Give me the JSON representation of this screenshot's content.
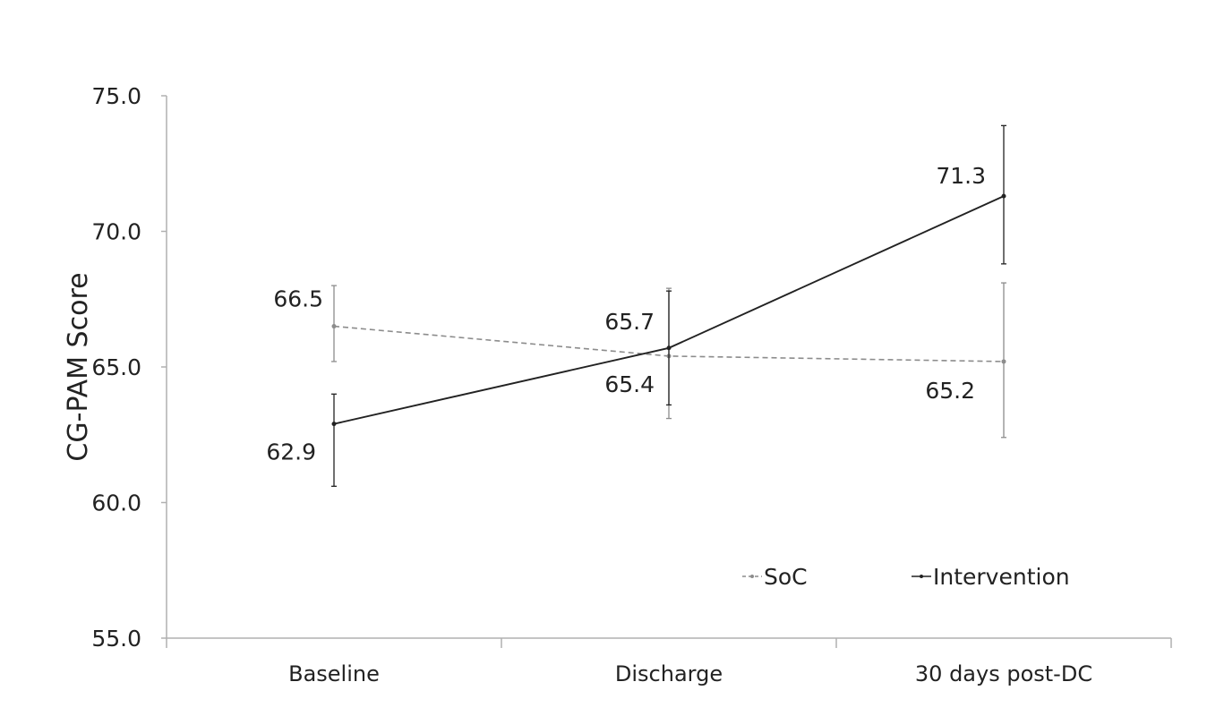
{
  "chart_data": {
    "type": "line",
    "title": "",
    "xlabel": "",
    "ylabel": "CG-PAM Score",
    "ylim": [
      55.0,
      75.0
    ],
    "yticks": [
      "55.0",
      "60.0",
      "65.0",
      "70.0",
      "75.0"
    ],
    "categories": [
      "Baseline",
      "Discharge",
      "30 days post-DC"
    ],
    "grid": false,
    "legend_position": "bottom-right",
    "series": [
      {
        "name": "SoC",
        "style": "dashed",
        "color": "#8c8c8c",
        "values": [
          66.5,
          65.4,
          65.2
        ],
        "labels": [
          "66.5",
          "65.4",
          "65.2"
        ],
        "error_low": [
          65.2,
          63.1,
          62.4
        ],
        "error_high": [
          68.0,
          67.9,
          68.1
        ]
      },
      {
        "name": "Intervention",
        "style": "solid",
        "color": "#222222",
        "values": [
          62.9,
          65.7,
          71.3
        ],
        "labels": [
          "62.9",
          "65.7",
          "71.3"
        ],
        "error_low": [
          60.6,
          63.6,
          68.8
        ],
        "error_high": [
          64.0,
          67.8,
          73.9
        ]
      }
    ]
  }
}
